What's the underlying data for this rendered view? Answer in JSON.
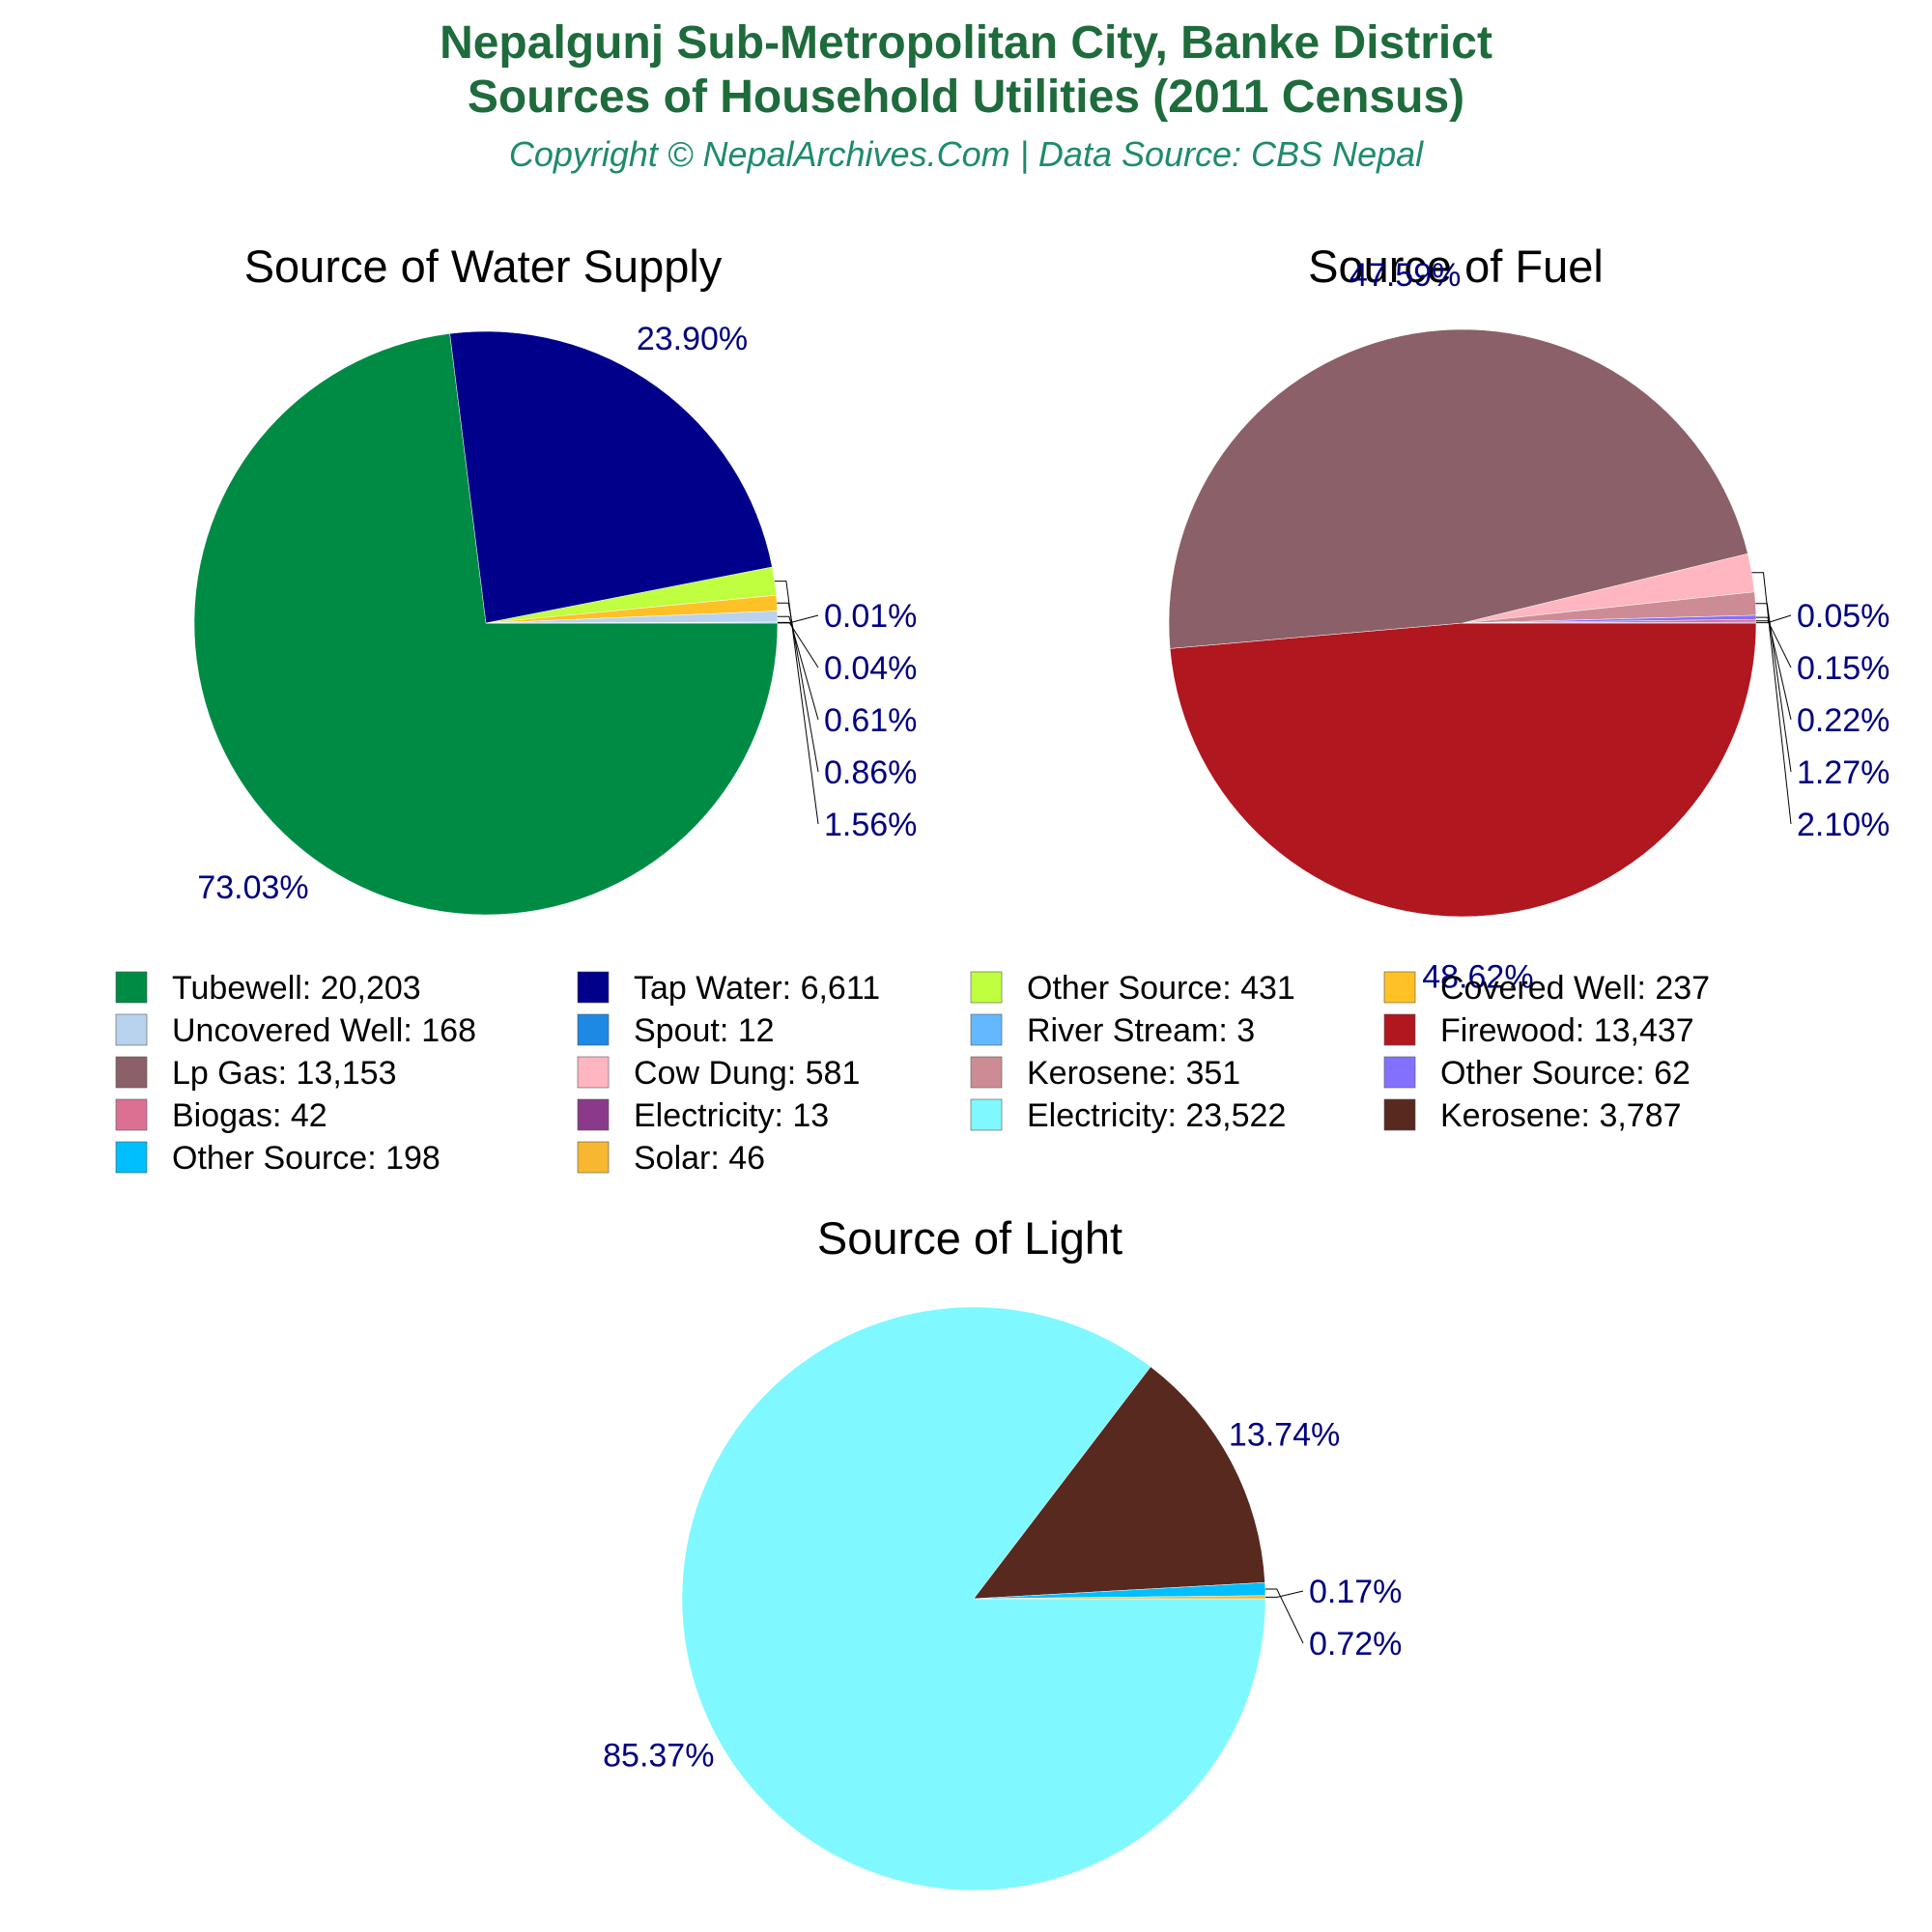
{
  "header": {
    "title_line1": "Nepalgunj Sub-Metropolitan City, Banke District",
    "title_line2": "Sources of Household Utilities (2011 Census)",
    "subtitle": "Copyright © NepalArchives.Com | Data Source: CBS Nepal"
  },
  "chart_data": [
    {
      "type": "pie",
      "title": "Source of Water Supply",
      "slices": [
        {
          "label": "Tubewell",
          "value": 20203,
          "percent": "73.03%",
          "color": "#008b45"
        },
        {
          "label": "Tap Water",
          "value": 6611,
          "percent": "23.90%",
          "color": "#00008b"
        },
        {
          "label": "Other Source",
          "value": 431,
          "percent": "1.56%",
          "color": "#bfff3f"
        },
        {
          "label": "Covered Well",
          "value": 237,
          "percent": "0.86%",
          "color": "#ffc125"
        },
        {
          "label": "Uncovered Well",
          "value": 168,
          "percent": "0.61%",
          "color": "#b9d3ee"
        },
        {
          "label": "Spout",
          "value": 12,
          "percent": "0.04%",
          "color": "#1e88e5"
        },
        {
          "label": "River Stream",
          "value": 3,
          "percent": "0.01%",
          "color": "#63b8ff"
        }
      ]
    },
    {
      "type": "pie",
      "title": "Source of Fuel",
      "slices": [
        {
          "label": "Firewood",
          "value": 13437,
          "percent": "48.62%",
          "color": "#b0171f"
        },
        {
          "label": "Lp Gas",
          "value": 13153,
          "percent": "47.59%",
          "color": "#8b6068"
        },
        {
          "label": "Cow Dung",
          "value": 581,
          "percent": "2.10%",
          "color": "#ffb6c1"
        },
        {
          "label": "Kerosene",
          "value": 351,
          "percent": "1.27%",
          "color": "#cd8c95"
        },
        {
          "label": "Other Source",
          "value": 62,
          "percent": "0.22%",
          "color": "#8470ff"
        },
        {
          "label": "Biogas",
          "value": 42,
          "percent": "0.15%",
          "color": "#db7093"
        },
        {
          "label": "Electricity",
          "value": 13,
          "percent": "0.05%",
          "color": "#8b3a8b"
        }
      ]
    },
    {
      "type": "pie",
      "title": "Source of Light",
      "slices": [
        {
          "label": "Electricity",
          "value": 23522,
          "percent": "85.37%",
          "color": "#7ff9ff"
        },
        {
          "label": "Kerosene",
          "value": 3787,
          "percent": "13.74%",
          "color": "#58291f"
        },
        {
          "label": "Other Source",
          "value": 198,
          "percent": "0.72%",
          "color": "#00bfff"
        },
        {
          "label": "Solar",
          "value": 46,
          "percent": "0.17%",
          "color": "#f7b731"
        }
      ]
    }
  ],
  "legend": [
    {
      "text": "Tubewell: 20,203",
      "color": "#008b45"
    },
    {
      "text": "Tap Water: 6,611",
      "color": "#00008b"
    },
    {
      "text": "Other Source: 431",
      "color": "#bfff3f"
    },
    {
      "text": "Covered Well: 237",
      "color": "#ffc125"
    },
    {
      "text": "Uncovered Well: 168",
      "color": "#b9d3ee"
    },
    {
      "text": "Spout: 12",
      "color": "#1e88e5"
    },
    {
      "text": "River Stream: 3",
      "color": "#63b8ff"
    },
    {
      "text": "Firewood: 13,437",
      "color": "#b0171f"
    },
    {
      "text": "Lp Gas: 13,153",
      "color": "#8b6068"
    },
    {
      "text": "Cow Dung: 581",
      "color": "#ffb6c1"
    },
    {
      "text": "Kerosene: 351",
      "color": "#cd8c95"
    },
    {
      "text": "Other Source: 62",
      "color": "#8470ff"
    },
    {
      "text": "Biogas: 42",
      "color": "#db7093"
    },
    {
      "text": "Electricity: 13",
      "color": "#8b3a8b"
    },
    {
      "text": "Electricity: 23,522",
      "color": "#7ff9ff"
    },
    {
      "text": "Kerosene: 3,787",
      "color": "#58291f"
    },
    {
      "text": "Other Source: 198",
      "color": "#00bfff"
    },
    {
      "text": "Solar: 46",
      "color": "#f7b731"
    }
  ]
}
